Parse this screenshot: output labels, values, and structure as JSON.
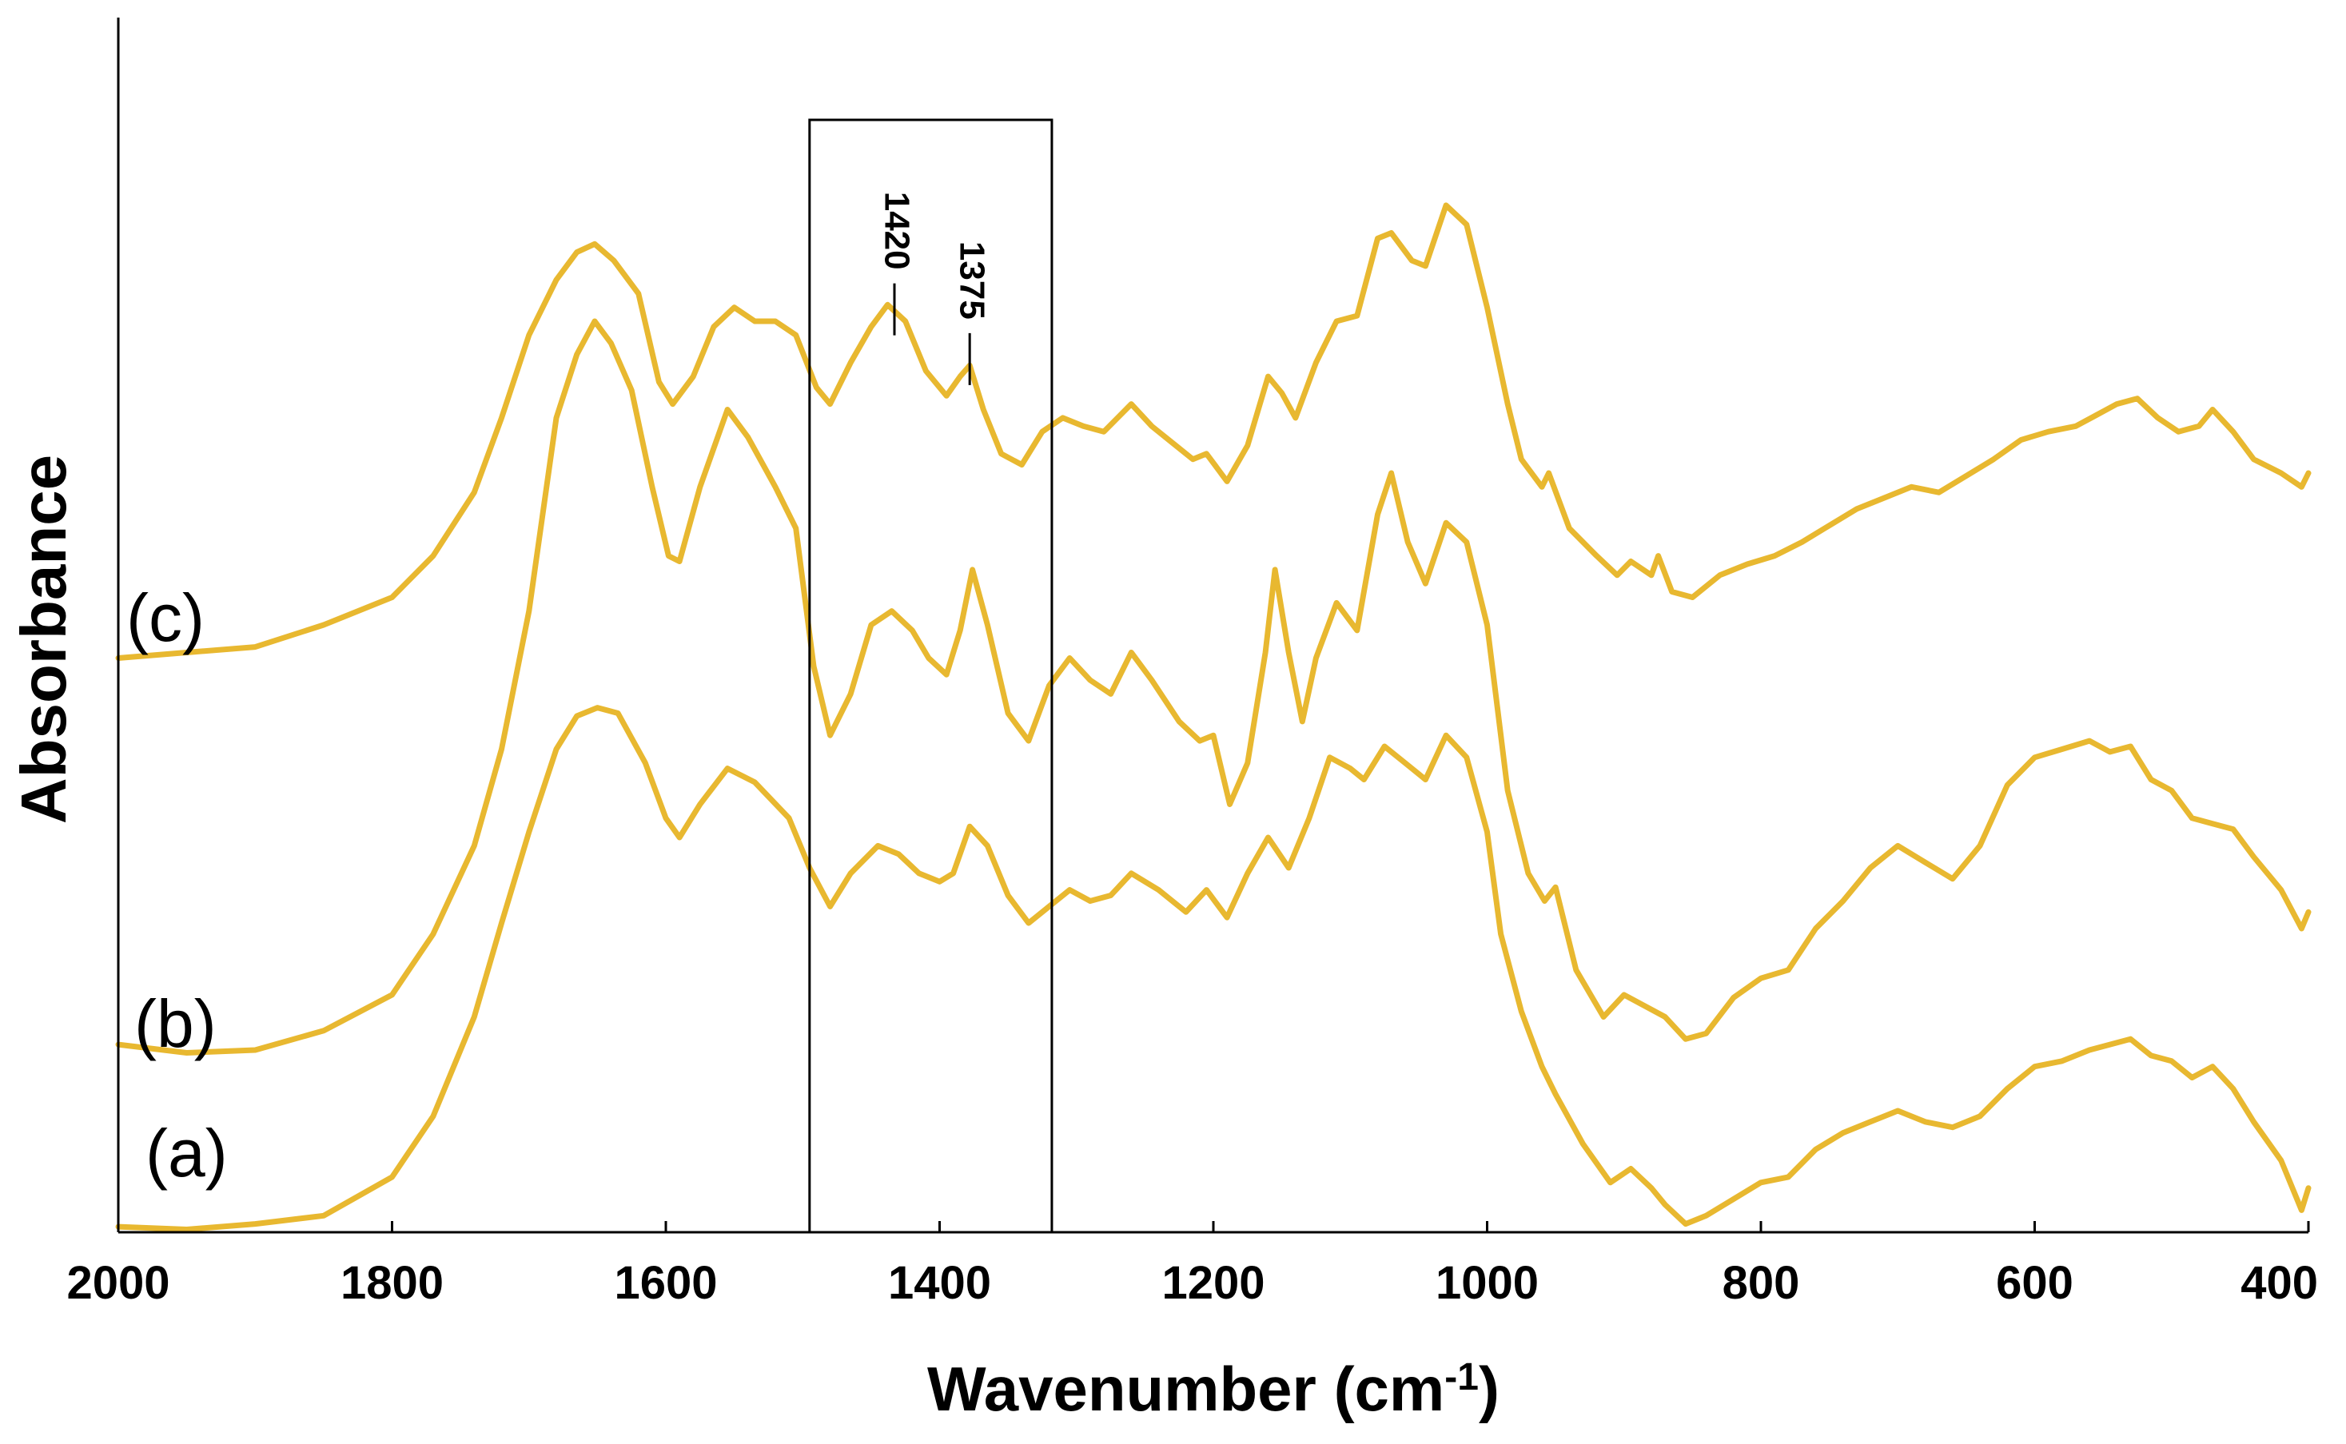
{
  "chart_data": {
    "type": "line",
    "title": "",
    "xlabel": "Wavenumber (cm",
    "xlabel_sup": "-1",
    "xlabel_close": ")",
    "ylabel": "Absorbance",
    "xlim": [
      2000,
      400
    ],
    "x_reversed": true,
    "ylim": [
      0,
      4.4
    ],
    "xticks": [
      2000,
      1800,
      1600,
      1400,
      1200,
      1000,
      800,
      600,
      400
    ],
    "xtick_labels": [
      "2000",
      "1800",
      "1600",
      "1400",
      "1200",
      "1000",
      "800",
      "600",
      "400"
    ],
    "yticks_shown": false,
    "grid": false,
    "line_color": "#E8B830",
    "highlight_box": {
      "x_from": 1495,
      "x_to": 1318
    },
    "annotations": [
      {
        "text": "1420",
        "x": 1433,
        "y": 3.22
      },
      {
        "text": "1375",
        "x": 1378,
        "y": 3.04
      }
    ],
    "series": [
      {
        "name": "(a)",
        "label": "(a)",
        "points": [
          [
            2000,
            0.02
          ],
          [
            1950,
            0.01
          ],
          [
            1900,
            0.03
          ],
          [
            1850,
            0.06
          ],
          [
            1800,
            0.2
          ],
          [
            1770,
            0.42
          ],
          [
            1740,
            0.78
          ],
          [
            1720,
            1.12
          ],
          [
            1700,
            1.45
          ],
          [
            1680,
            1.75
          ],
          [
            1665,
            1.87
          ],
          [
            1650,
            1.9
          ],
          [
            1635,
            1.88
          ],
          [
            1615,
            1.7
          ],
          [
            1600,
            1.5
          ],
          [
            1590,
            1.43
          ],
          [
            1575,
            1.55
          ],
          [
            1555,
            1.68
          ],
          [
            1535,
            1.63
          ],
          [
            1510,
            1.5
          ],
          [
            1495,
            1.32
          ],
          [
            1480,
            1.18
          ],
          [
            1465,
            1.3
          ],
          [
            1445,
            1.4
          ],
          [
            1430,
            1.37
          ],
          [
            1415,
            1.3
          ],
          [
            1400,
            1.27
          ],
          [
            1390,
            1.3
          ],
          [
            1378,
            1.47
          ],
          [
            1365,
            1.4
          ],
          [
            1350,
            1.22
          ],
          [
            1335,
            1.12
          ],
          [
            1320,
            1.18
          ],
          [
            1305,
            1.24
          ],
          [
            1290,
            1.2
          ],
          [
            1275,
            1.22
          ],
          [
            1260,
            1.3
          ],
          [
            1240,
            1.24
          ],
          [
            1220,
            1.16
          ],
          [
            1205,
            1.24
          ],
          [
            1190,
            1.14
          ],
          [
            1175,
            1.3
          ],
          [
            1160,
            1.43
          ],
          [
            1145,
            1.32
          ],
          [
            1130,
            1.5
          ],
          [
            1115,
            1.72
          ],
          [
            1100,
            1.68
          ],
          [
            1090,
            1.64
          ],
          [
            1075,
            1.76
          ],
          [
            1060,
            1.7
          ],
          [
            1045,
            1.64
          ],
          [
            1030,
            1.8
          ],
          [
            1015,
            1.72
          ],
          [
            1000,
            1.45
          ],
          [
            990,
            1.08
          ],
          [
            975,
            0.8
          ],
          [
            960,
            0.6
          ],
          [
            950,
            0.5
          ],
          [
            930,
            0.32
          ],
          [
            910,
            0.18
          ],
          [
            895,
            0.23
          ],
          [
            880,
            0.16
          ],
          [
            870,
            0.1
          ],
          [
            855,
            0.03
          ],
          [
            840,
            0.06
          ],
          [
            820,
            0.12
          ],
          [
            800,
            0.18
          ],
          [
            780,
            0.2
          ],
          [
            760,
            0.3
          ],
          [
            740,
            0.36
          ],
          [
            720,
            0.4
          ],
          [
            700,
            0.44
          ],
          [
            680,
            0.4
          ],
          [
            660,
            0.38
          ],
          [
            640,
            0.42
          ],
          [
            620,
            0.52
          ],
          [
            600,
            0.6
          ],
          [
            580,
            0.62
          ],
          [
            560,
            0.66
          ],
          [
            545,
            0.68
          ],
          [
            530,
            0.7
          ],
          [
            515,
            0.64
          ],
          [
            500,
            0.62
          ],
          [
            485,
            0.56
          ],
          [
            470,
            0.6
          ],
          [
            455,
            0.52
          ],
          [
            440,
            0.4
          ],
          [
            420,
            0.26
          ],
          [
            405,
            0.08
          ],
          [
            400,
            0.16
          ]
        ]
      },
      {
        "name": "(b)",
        "label": "(b)",
        "points": [
          [
            2000,
            0.68
          ],
          [
            1950,
            0.65
          ],
          [
            1900,
            0.66
          ],
          [
            1850,
            0.73
          ],
          [
            1800,
            0.86
          ],
          [
            1770,
            1.08
          ],
          [
            1740,
            1.4
          ],
          [
            1720,
            1.75
          ],
          [
            1700,
            2.25
          ],
          [
            1680,
            2.95
          ],
          [
            1665,
            3.18
          ],
          [
            1652,
            3.3
          ],
          [
            1640,
            3.22
          ],
          [
            1625,
            3.05
          ],
          [
            1610,
            2.7
          ],
          [
            1598,
            2.45
          ],
          [
            1590,
            2.43
          ],
          [
            1575,
            2.7
          ],
          [
            1555,
            2.98
          ],
          [
            1540,
            2.88
          ],
          [
            1520,
            2.7
          ],
          [
            1505,
            2.55
          ],
          [
            1492,
            2.05
          ],
          [
            1480,
            1.8
          ],
          [
            1465,
            1.95
          ],
          [
            1450,
            2.2
          ],
          [
            1435,
            2.25
          ],
          [
            1420,
            2.18
          ],
          [
            1408,
            2.08
          ],
          [
            1395,
            2.02
          ],
          [
            1385,
            2.18
          ],
          [
            1376,
            2.4
          ],
          [
            1365,
            2.2
          ],
          [
            1350,
            1.88
          ],
          [
            1335,
            1.78
          ],
          [
            1320,
            1.98
          ],
          [
            1305,
            2.08
          ],
          [
            1290,
            2.0
          ],
          [
            1275,
            1.95
          ],
          [
            1260,
            2.1
          ],
          [
            1245,
            2.0
          ],
          [
            1225,
            1.85
          ],
          [
            1210,
            1.78
          ],
          [
            1200,
            1.8
          ],
          [
            1188,
            1.55
          ],
          [
            1175,
            1.7
          ],
          [
            1162,
            2.1
          ],
          [
            1155,
            2.4
          ],
          [
            1145,
            2.1
          ],
          [
            1135,
            1.85
          ],
          [
            1125,
            2.08
          ],
          [
            1110,
            2.28
          ],
          [
            1095,
            2.18
          ],
          [
            1080,
            2.6
          ],
          [
            1070,
            2.75
          ],
          [
            1058,
            2.5
          ],
          [
            1045,
            2.35
          ],
          [
            1030,
            2.57
          ],
          [
            1015,
            2.5
          ],
          [
            1000,
            2.2
          ],
          [
            985,
            1.6
          ],
          [
            970,
            1.3
          ],
          [
            958,
            1.2
          ],
          [
            950,
            1.25
          ],
          [
            935,
            0.95
          ],
          [
            915,
            0.78
          ],
          [
            900,
            0.86
          ],
          [
            885,
            0.82
          ],
          [
            870,
            0.78
          ],
          [
            855,
            0.7
          ],
          [
            840,
            0.72
          ],
          [
            820,
            0.85
          ],
          [
            800,
            0.92
          ],
          [
            780,
            0.95
          ],
          [
            760,
            1.1
          ],
          [
            740,
            1.2
          ],
          [
            720,
            1.32
          ],
          [
            700,
            1.4
          ],
          [
            680,
            1.34
          ],
          [
            660,
            1.28
          ],
          [
            640,
            1.4
          ],
          [
            620,
            1.62
          ],
          [
            600,
            1.72
          ],
          [
            580,
            1.75
          ],
          [
            560,
            1.78
          ],
          [
            545,
            1.74
          ],
          [
            530,
            1.76
          ],
          [
            515,
            1.64
          ],
          [
            500,
            1.6
          ],
          [
            485,
            1.5
          ],
          [
            470,
            1.48
          ],
          [
            455,
            1.46
          ],
          [
            440,
            1.36
          ],
          [
            420,
            1.24
          ],
          [
            405,
            1.1
          ],
          [
            400,
            1.16
          ]
        ]
      },
      {
        "name": "(c)",
        "label": "(c)",
        "points": [
          [
            2000,
            2.08
          ],
          [
            1950,
            2.1
          ],
          [
            1900,
            2.12
          ],
          [
            1850,
            2.2
          ],
          [
            1800,
            2.3
          ],
          [
            1770,
            2.45
          ],
          [
            1740,
            2.68
          ],
          [
            1720,
            2.95
          ],
          [
            1700,
            3.25
          ],
          [
            1680,
            3.45
          ],
          [
            1665,
            3.55
          ],
          [
            1652,
            3.58
          ],
          [
            1638,
            3.52
          ],
          [
            1620,
            3.4
          ],
          [
            1605,
            3.08
          ],
          [
            1595,
            3.0
          ],
          [
            1580,
            3.1
          ],
          [
            1565,
            3.28
          ],
          [
            1550,
            3.35
          ],
          [
            1535,
            3.3
          ],
          [
            1520,
            3.3
          ],
          [
            1505,
            3.25
          ],
          [
            1490,
            3.06
          ],
          [
            1480,
            3.0
          ],
          [
            1465,
            3.15
          ],
          [
            1450,
            3.28
          ],
          [
            1438,
            3.36
          ],
          [
            1425,
            3.3
          ],
          [
            1410,
            3.12
          ],
          [
            1395,
            3.03
          ],
          [
            1385,
            3.1
          ],
          [
            1378,
            3.14
          ],
          [
            1368,
            2.98
          ],
          [
            1355,
            2.82
          ],
          [
            1340,
            2.78
          ],
          [
            1325,
            2.9
          ],
          [
            1310,
            2.95
          ],
          [
            1295,
            2.92
          ],
          [
            1280,
            2.9
          ],
          [
            1260,
            3.0
          ],
          [
            1245,
            2.92
          ],
          [
            1230,
            2.86
          ],
          [
            1215,
            2.8
          ],
          [
            1205,
            2.82
          ],
          [
            1190,
            2.72
          ],
          [
            1175,
            2.85
          ],
          [
            1160,
            3.1
          ],
          [
            1150,
            3.04
          ],
          [
            1140,
            2.95
          ],
          [
            1125,
            3.15
          ],
          [
            1110,
            3.3
          ],
          [
            1095,
            3.32
          ],
          [
            1080,
            3.6
          ],
          [
            1070,
            3.62
          ],
          [
            1055,
            3.52
          ],
          [
            1045,
            3.5
          ],
          [
            1030,
            3.72
          ],
          [
            1015,
            3.65
          ],
          [
            1000,
            3.35
          ],
          [
            985,
            3.0
          ],
          [
            975,
            2.8
          ],
          [
            960,
            2.7
          ],
          [
            955,
            2.75
          ],
          [
            940,
            2.55
          ],
          [
            920,
            2.45
          ],
          [
            905,
            2.38
          ],
          [
            895,
            2.43
          ],
          [
            880,
            2.38
          ],
          [
            875,
            2.45
          ],
          [
            865,
            2.32
          ],
          [
            850,
            2.3
          ],
          [
            830,
            2.38
          ],
          [
            810,
            2.42
          ],
          [
            790,
            2.45
          ],
          [
            770,
            2.5
          ],
          [
            750,
            2.56
          ],
          [
            730,
            2.62
          ],
          [
            710,
            2.66
          ],
          [
            690,
            2.7
          ],
          [
            670,
            2.68
          ],
          [
            650,
            2.74
          ],
          [
            630,
            2.8
          ],
          [
            610,
            2.87
          ],
          [
            590,
            2.9
          ],
          [
            570,
            2.92
          ],
          [
            555,
            2.96
          ],
          [
            540,
            3.0
          ],
          [
            525,
            3.02
          ],
          [
            510,
            2.95
          ],
          [
            495,
            2.9
          ],
          [
            480,
            2.92
          ],
          [
            470,
            2.98
          ],
          [
            455,
            2.9
          ],
          [
            440,
            2.8
          ],
          [
            420,
            2.75
          ],
          [
            405,
            2.7
          ],
          [
            400,
            2.75
          ]
        ]
      }
    ]
  }
}
